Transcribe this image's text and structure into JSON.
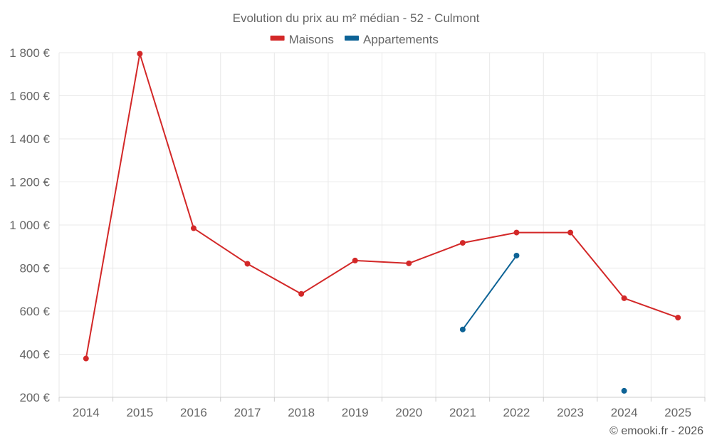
{
  "chart_data": {
    "type": "line",
    "title": "Evolution du prix au m² médian - 52 - Culmont",
    "categories": [
      "2014",
      "2015",
      "2016",
      "2017",
      "2018",
      "2019",
      "2020",
      "2021",
      "2022",
      "2023",
      "2024",
      "2025"
    ],
    "ylim": [
      200,
      1800
    ],
    "yticks": [
      200,
      400,
      600,
      800,
      1000,
      1200,
      1400,
      1600,
      1800
    ],
    "ytick_labels": [
      "200 €",
      "400 €",
      "600 €",
      "800 €",
      "1 000 €",
      "1 200 €",
      "1 400 €",
      "1 600 €",
      "1 800 €"
    ],
    "xlabel": "",
    "ylabel": "",
    "grid": true,
    "legend_position": "top-center",
    "series": [
      {
        "name": "Maisons",
        "color": "#d32828",
        "values": [
          380,
          1795,
          985,
          820,
          680,
          835,
          822,
          917,
          965,
          965,
          660,
          570
        ]
      },
      {
        "name": "Appartements",
        "color": "#0d6396",
        "values": [
          null,
          null,
          null,
          null,
          null,
          null,
          null,
          515,
          858,
          null,
          230,
          null
        ]
      }
    ]
  },
  "footer": {
    "credit": "© emooki.fr - 2026"
  }
}
